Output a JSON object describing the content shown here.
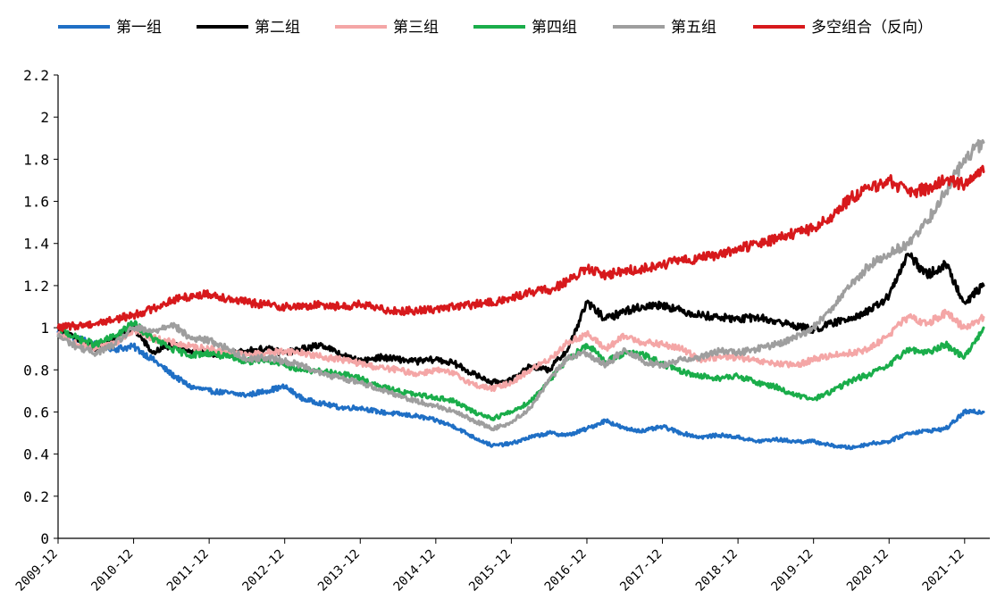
{
  "chart_data": {
    "type": "line",
    "title": "",
    "xlabel": "",
    "ylabel": "",
    "ylim": [
      0,
      2.2
    ],
    "yticks": [
      "0",
      "0.2",
      "0.4",
      "0.6",
      "0.8",
      "1",
      "1.2",
      "1.4",
      "1.6",
      "1.8",
      "2",
      "2.2"
    ],
    "x_tick_labels": [
      "2009-12",
      "2010-12",
      "2011-12",
      "2012-12",
      "2013-12",
      "2014-12",
      "2015-12",
      "2016-12",
      "2017-12",
      "2018-12",
      "2019-12",
      "2020-12",
      "2021-12"
    ],
    "x_range": [
      "2009-12",
      "2022-04"
    ],
    "grid": false,
    "legend_position": "top",
    "series": [
      {
        "name": "第一组",
        "color": "#1f6fc5",
        "x": [
          "2009-12",
          "2010-03",
          "2010-06",
          "2010-09",
          "2010-12",
          "2011-03",
          "2011-06",
          "2011-09",
          "2011-12",
          "2012-03",
          "2012-06",
          "2012-09",
          "2012-12",
          "2013-03",
          "2013-06",
          "2013-09",
          "2013-12",
          "2014-03",
          "2014-06",
          "2014-09",
          "2014-12",
          "2015-03",
          "2015-06",
          "2015-09",
          "2015-12",
          "2016-03",
          "2016-06",
          "2016-09",
          "2016-12",
          "2017-03",
          "2017-06",
          "2017-09",
          "2017-12",
          "2018-03",
          "2018-06",
          "2018-09",
          "2018-12",
          "2019-03",
          "2019-06",
          "2019-09",
          "2019-12",
          "2020-03",
          "2020-06",
          "2020-09",
          "2020-12",
          "2021-03",
          "2021-06",
          "2021-09",
          "2021-12",
          "2022-03"
        ],
        "values": [
          0.98,
          0.95,
          0.92,
          0.9,
          0.91,
          0.85,
          0.78,
          0.72,
          0.7,
          0.69,
          0.68,
          0.7,
          0.72,
          0.66,
          0.64,
          0.62,
          0.62,
          0.6,
          0.59,
          0.58,
          0.56,
          0.53,
          0.48,
          0.44,
          0.45,
          0.48,
          0.5,
          0.49,
          0.52,
          0.56,
          0.52,
          0.51,
          0.53,
          0.5,
          0.48,
          0.49,
          0.48,
          0.46,
          0.47,
          0.46,
          0.46,
          0.44,
          0.43,
          0.45,
          0.46,
          0.5,
          0.51,
          0.52,
          0.6,
          0.6
        ]
      },
      {
        "name": "第二组",
        "color": "#000000",
        "x": [
          "2009-12",
          "2010-03",
          "2010-06",
          "2010-09",
          "2010-12",
          "2011-03",
          "2011-06",
          "2011-09",
          "2011-12",
          "2012-03",
          "2012-06",
          "2012-09",
          "2012-12",
          "2013-03",
          "2013-06",
          "2013-09",
          "2013-12",
          "2014-03",
          "2014-06",
          "2014-09",
          "2014-12",
          "2015-03",
          "2015-06",
          "2015-09",
          "2015-12",
          "2016-03",
          "2016-06",
          "2016-09",
          "2016-12",
          "2017-03",
          "2017-06",
          "2017-09",
          "2017-12",
          "2018-03",
          "2018-06",
          "2018-09",
          "2018-12",
          "2019-03",
          "2019-06",
          "2019-09",
          "2019-12",
          "2020-03",
          "2020-06",
          "2020-09",
          "2020-12",
          "2021-03",
          "2021-06",
          "2021-09",
          "2021-12",
          "2022-03"
        ],
        "values": [
          1.0,
          0.94,
          0.9,
          0.95,
          1.0,
          0.88,
          0.92,
          0.89,
          0.88,
          0.87,
          0.89,
          0.9,
          0.88,
          0.9,
          0.92,
          0.87,
          0.84,
          0.86,
          0.85,
          0.84,
          0.85,
          0.83,
          0.78,
          0.74,
          0.75,
          0.82,
          0.8,
          0.9,
          1.12,
          1.04,
          1.08,
          1.1,
          1.11,
          1.08,
          1.06,
          1.05,
          1.04,
          1.05,
          1.03,
          1.01,
          0.99,
          1.02,
          1.05,
          1.08,
          1.15,
          1.35,
          1.25,
          1.3,
          1.12,
          1.2
        ]
      },
      {
        "name": "第三组",
        "color": "#f4a6a6",
        "x": [
          "2009-12",
          "2010-03",
          "2010-06",
          "2010-09",
          "2010-12",
          "2011-03",
          "2011-06",
          "2011-09",
          "2011-12",
          "2012-03",
          "2012-06",
          "2012-09",
          "2012-12",
          "2013-03",
          "2013-06",
          "2013-09",
          "2013-12",
          "2014-03",
          "2014-06",
          "2014-09",
          "2014-12",
          "2015-03",
          "2015-06",
          "2015-09",
          "2015-12",
          "2016-03",
          "2016-06",
          "2016-09",
          "2016-12",
          "2017-03",
          "2017-06",
          "2017-09",
          "2017-12",
          "2018-03",
          "2018-06",
          "2018-09",
          "2018-12",
          "2019-03",
          "2019-06",
          "2019-09",
          "2019-12",
          "2020-03",
          "2020-06",
          "2020-09",
          "2020-12",
          "2021-03",
          "2021-06",
          "2021-09",
          "2021-12",
          "2022-03"
        ],
        "values": [
          0.97,
          0.92,
          0.9,
          0.93,
          0.99,
          0.95,
          0.93,
          0.91,
          0.9,
          0.88,
          0.87,
          0.88,
          0.89,
          0.88,
          0.86,
          0.85,
          0.83,
          0.81,
          0.8,
          0.78,
          0.8,
          0.78,
          0.73,
          0.71,
          0.74,
          0.8,
          0.85,
          0.93,
          0.97,
          0.9,
          0.96,
          0.93,
          0.92,
          0.9,
          0.85,
          0.86,
          0.86,
          0.84,
          0.83,
          0.82,
          0.85,
          0.87,
          0.88,
          0.9,
          0.97,
          1.05,
          1.02,
          1.07,
          1.0,
          1.05
        ]
      },
      {
        "name": "第四组",
        "color": "#1aad4a",
        "x": [
          "2009-12",
          "2010-03",
          "2010-06",
          "2010-09",
          "2010-12",
          "2011-03",
          "2011-06",
          "2011-09",
          "2011-12",
          "2012-03",
          "2012-06",
          "2012-09",
          "2012-12",
          "2013-03",
          "2013-06",
          "2013-09",
          "2013-12",
          "2014-03",
          "2014-06",
          "2014-09",
          "2014-12",
          "2015-03",
          "2015-06",
          "2015-09",
          "2015-12",
          "2016-03",
          "2016-06",
          "2016-09",
          "2016-12",
          "2017-03",
          "2017-06",
          "2017-09",
          "2017-12",
          "2018-03",
          "2018-06",
          "2018-09",
          "2018-12",
          "2019-03",
          "2019-06",
          "2019-09",
          "2019-12",
          "2020-03",
          "2020-06",
          "2020-09",
          "2020-12",
          "2021-03",
          "2021-06",
          "2021-09",
          "2021-12",
          "2022-03"
        ],
        "values": [
          1.0,
          0.95,
          0.92,
          0.96,
          1.02,
          0.95,
          0.9,
          0.87,
          0.88,
          0.86,
          0.84,
          0.85,
          0.82,
          0.8,
          0.79,
          0.78,
          0.76,
          0.72,
          0.7,
          0.68,
          0.67,
          0.65,
          0.6,
          0.57,
          0.6,
          0.65,
          0.75,
          0.85,
          0.92,
          0.84,
          0.88,
          0.87,
          0.83,
          0.79,
          0.77,
          0.76,
          0.77,
          0.74,
          0.72,
          0.68,
          0.66,
          0.7,
          0.75,
          0.78,
          0.82,
          0.9,
          0.88,
          0.92,
          0.86,
          1.0
        ]
      },
      {
        "name": "第五组",
        "color": "#9e9e9e",
        "x": [
          "2009-12",
          "2010-03",
          "2010-06",
          "2010-09",
          "2010-12",
          "2011-03",
          "2011-06",
          "2011-09",
          "2011-12",
          "2012-03",
          "2012-06",
          "2012-09",
          "2012-12",
          "2013-03",
          "2013-06",
          "2013-09",
          "2013-12",
          "2014-03",
          "2014-06",
          "2014-09",
          "2014-12",
          "2015-03",
          "2015-06",
          "2015-09",
          "2015-12",
          "2016-03",
          "2016-06",
          "2016-09",
          "2016-12",
          "2017-03",
          "2017-06",
          "2017-09",
          "2017-12",
          "2018-03",
          "2018-06",
          "2018-09",
          "2018-12",
          "2019-03",
          "2019-06",
          "2019-09",
          "2019-12",
          "2020-03",
          "2020-06",
          "2020-09",
          "2020-12",
          "2021-03",
          "2021-06",
          "2021-09",
          "2021-12",
          "2022-03"
        ],
        "values": [
          0.96,
          0.91,
          0.88,
          0.92,
          1.0,
          0.98,
          1.02,
          0.95,
          0.94,
          0.9,
          0.85,
          0.86,
          0.84,
          0.82,
          0.78,
          0.76,
          0.74,
          0.71,
          0.68,
          0.65,
          0.63,
          0.6,
          0.56,
          0.52,
          0.55,
          0.62,
          0.75,
          0.86,
          0.88,
          0.82,
          0.9,
          0.84,
          0.82,
          0.85,
          0.86,
          0.89,
          0.88,
          0.9,
          0.92,
          0.95,
          1.0,
          1.1,
          1.2,
          1.3,
          1.35,
          1.4,
          1.5,
          1.65,
          1.8,
          1.88
        ]
      },
      {
        "name": "多空组合（反向）",
        "color": "#d7191c",
        "x": [
          "2009-12",
          "2010-03",
          "2010-06",
          "2010-09",
          "2010-12",
          "2011-03",
          "2011-06",
          "2011-09",
          "2011-12",
          "2012-03",
          "2012-06",
          "2012-09",
          "2012-12",
          "2013-03",
          "2013-06",
          "2013-09",
          "2013-12",
          "2014-03",
          "2014-06",
          "2014-09",
          "2014-12",
          "2015-03",
          "2015-06",
          "2015-09",
          "2015-12",
          "2016-03",
          "2016-06",
          "2016-09",
          "2016-12",
          "2017-03",
          "2017-06",
          "2017-09",
          "2017-12",
          "2018-03",
          "2018-06",
          "2018-09",
          "2018-12",
          "2019-03",
          "2019-06",
          "2019-09",
          "2019-12",
          "2020-03",
          "2020-06",
          "2020-09",
          "2020-12",
          "2021-03",
          "2021-06",
          "2021-09",
          "2021-12",
          "2022-03"
        ],
        "values": [
          1.0,
          1.01,
          1.02,
          1.04,
          1.06,
          1.09,
          1.13,
          1.15,
          1.16,
          1.14,
          1.12,
          1.11,
          1.1,
          1.1,
          1.11,
          1.1,
          1.11,
          1.09,
          1.08,
          1.08,
          1.09,
          1.1,
          1.11,
          1.12,
          1.14,
          1.17,
          1.18,
          1.22,
          1.28,
          1.25,
          1.27,
          1.28,
          1.3,
          1.32,
          1.33,
          1.35,
          1.37,
          1.4,
          1.42,
          1.45,
          1.47,
          1.53,
          1.62,
          1.66,
          1.7,
          1.64,
          1.66,
          1.7,
          1.68,
          1.74
        ]
      }
    ]
  }
}
